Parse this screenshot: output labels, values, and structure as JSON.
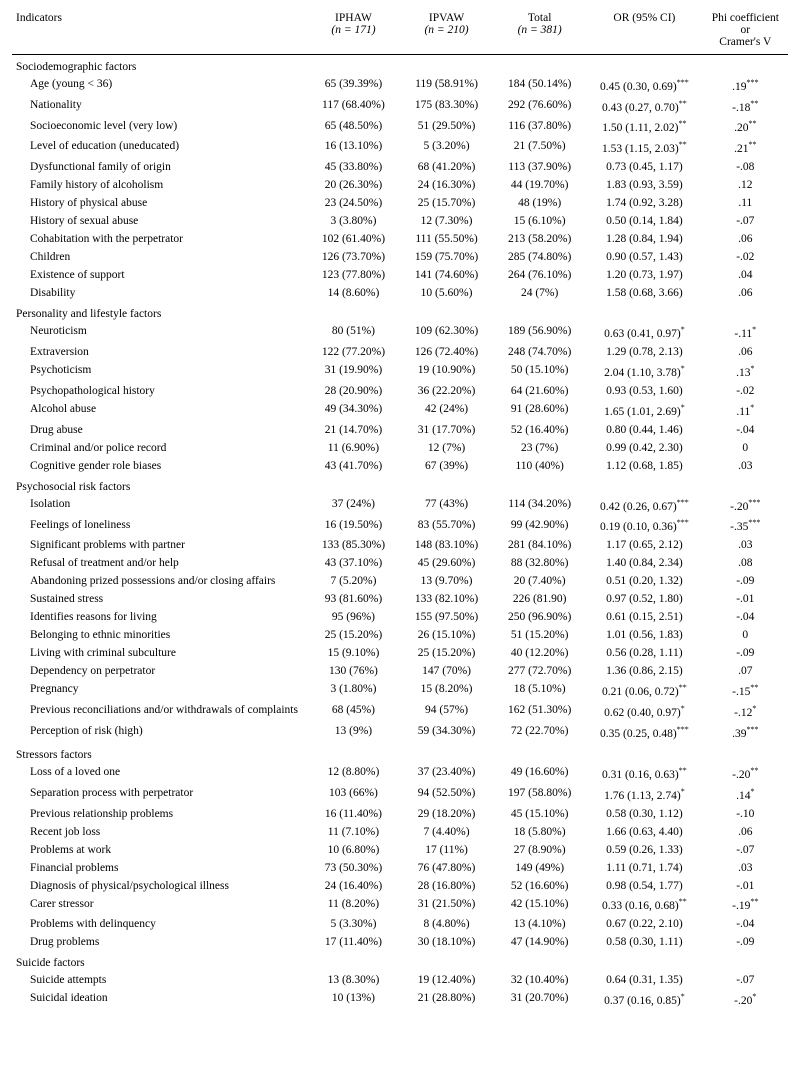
{
  "table": {
    "columns": [
      {
        "main": "Indicators",
        "sub": ""
      },
      {
        "main": "IPHAW",
        "sub": "(n = 171)"
      },
      {
        "main": "IPVAW",
        "sub": "(n = 210)"
      },
      {
        "main": "Total",
        "sub": "(n = 381)"
      },
      {
        "main": "OR (95% CI)",
        "sub": ""
      },
      {
        "main": "Phi coefficient\nor\nCramer's V",
        "sub": ""
      }
    ],
    "sections": [
      {
        "title": "Sociodemographic factors",
        "rows": [
          {
            "indicator": "Age (young < 36)",
            "v1": "65 (39.39%)",
            "v2": "119 (58.91%)",
            "v3": "184 (50.14%)",
            "or": "0.45 (0.30, 0.69)***",
            "phi": ".19***"
          },
          {
            "indicator": "Nationality",
            "v1": "117 (68.40%)",
            "v2": "175 (83.30%)",
            "v3": "292 (76.60%)",
            "or": "0.43 (0.27, 0.70)**",
            "phi": "-.18**"
          },
          {
            "indicator": "Socioeconomic level (very low)",
            "v1": "65 (48.50%)",
            "v2": "51 (29.50%)",
            "v3": "116 (37.80%)",
            "or": "1.50 (1.11, 2.02)**",
            "phi": ".20**"
          },
          {
            "indicator": "Level of education (uneducated)",
            "v1": "16 (13.10%)",
            "v2": "5 (3.20%)",
            "v3": "21 (7.50%)",
            "or": "1.53 (1.15, 2.03)**",
            "phi": ".21**"
          },
          {
            "indicator": "Dysfunctional family of origin",
            "v1": "45 (33.80%)",
            "v2": "68 (41.20%)",
            "v3": "113 (37.90%)",
            "or": "0.73 (0.45, 1.17)",
            "phi": "-.08"
          },
          {
            "indicator": "Family history of alcoholism",
            "v1": "20 (26.30%)",
            "v2": "24 (16.30%)",
            "v3": "44 (19.70%)",
            "or": "1.83 (0.93, 3.59)",
            "phi": ".12"
          },
          {
            "indicator": "History of physical abuse",
            "v1": "23 (24.50%)",
            "v2": "25 (15.70%)",
            "v3": "48 (19%)",
            "or": "1.74 (0.92, 3.28)",
            "phi": ".11"
          },
          {
            "indicator": "History of sexual abuse",
            "v1": "3 (3.80%)",
            "v2": "12 (7.30%)",
            "v3": "15 (6.10%)",
            "or": "0.50 (0.14, 1.84)",
            "phi": "-.07"
          },
          {
            "indicator": "Cohabitation with the perpetrator",
            "v1": "102 (61.40%)",
            "v2": "111 (55.50%)",
            "v3": "213 (58.20%)",
            "or": "1.28 (0.84, 1.94)",
            "phi": ".06"
          },
          {
            "indicator": "Children",
            "v1": "126 (73.70%)",
            "v2": "159 (75.70%)",
            "v3": "285 (74.80%)",
            "or": "0.90 (0.57, 1.43)",
            "phi": "-.02"
          },
          {
            "indicator": "Existence of support",
            "v1": "123 (77.80%)",
            "v2": "141 (74.60%)",
            "v3": "264 (76.10%)",
            "or": "1.20 (0.73, 1.97)",
            "phi": ".04"
          },
          {
            "indicator": "Disability",
            "v1": "14 (8.60%)",
            "v2": "10 (5.60%)",
            "v3": "24 (7%)",
            "or": "1.58 (0.68, 3.66)",
            "phi": ".06"
          }
        ]
      },
      {
        "title": "Personality and lifestyle factors",
        "rows": [
          {
            "indicator": "Neuroticism",
            "v1": "80 (51%)",
            "v2": "109 (62.30%)",
            "v3": "189 (56.90%)",
            "or": "0.63 (0.41, 0.97)*",
            "phi": "-.11*"
          },
          {
            "indicator": "Extraversion",
            "v1": "122 (77.20%)",
            "v2": "126 (72.40%)",
            "v3": "248 (74.70%)",
            "or": "1.29 (0.78, 2.13)",
            "phi": ".06"
          },
          {
            "indicator": "Psychoticism",
            "v1": "31 (19.90%)",
            "v2": "19 (10.90%)",
            "v3": "50 (15.10%)",
            "or": "2.04 (1.10, 3.78)*",
            "phi": ".13*"
          },
          {
            "indicator": "Psychopathological history",
            "v1": "28 (20.90%)",
            "v2": "36 (22.20%)",
            "v3": "64 (21.60%)",
            "or": "0.93 (0.53, 1.60)",
            "phi": "-.02"
          },
          {
            "indicator": "Alcohol abuse",
            "v1": "49 (34.30%)",
            "v2": "42 (24%)",
            "v3": "91 (28.60%)",
            "or": "1.65 (1.01, 2.69)*",
            "phi": ".11*"
          },
          {
            "indicator": "Drug abuse",
            "v1": "21 (14.70%)",
            "v2": "31 (17.70%)",
            "v3": "52 (16.40%)",
            "or": "0.80 (0.44, 1.46)",
            "phi": "-.04"
          },
          {
            "indicator": "Criminal and/or police record",
            "v1": "11 (6.90%)",
            "v2": "12 (7%)",
            "v3": "23 (7%)",
            "or": "0.99 (0.42, 2.30)",
            "phi": "0"
          },
          {
            "indicator": "Cognitive gender role biases",
            "v1": "43 (41.70%)",
            "v2": "67 (39%)",
            "v3": "110 (40%)",
            "or": "1.12 (0.68, 1.85)",
            "phi": ".03"
          }
        ]
      },
      {
        "title": "Psychosocial risk factors",
        "rows": [
          {
            "indicator": "Isolation",
            "v1": "37 (24%)",
            "v2": "77 (43%)",
            "v3": "114 (34.20%)",
            "or": "0.42 (0.26, 0.67)***",
            "phi": "-.20***"
          },
          {
            "indicator": "Feelings of loneliness",
            "v1": "16 (19.50%)",
            "v2": "83 (55.70%)",
            "v3": "99 (42.90%)",
            "or": "0.19 (0.10, 0.36)***",
            "phi": "-.35***"
          },
          {
            "indicator": "Significant problems with partner",
            "v1": "133 (85.30%)",
            "v2": "148 (83.10%)",
            "v3": "281 (84.10%)",
            "or": "1.17 (0.65, 2.12)",
            "phi": ".03"
          },
          {
            "indicator": "Refusal of treatment and/or help",
            "v1": "43 (37.10%)",
            "v2": "45 (29.60%)",
            "v3": "88 (32.80%)",
            "or": "1.40 (0.84, 2.34)",
            "phi": ".08"
          },
          {
            "indicator": "Abandoning prized possessions and/or closing affairs",
            "v1": "7 (5.20%)",
            "v2": "13 (9.70%)",
            "v3": "20 (7.40%)",
            "or": "0.51 (0.20, 1.32)",
            "phi": "-.09"
          },
          {
            "indicator": "Sustained stress",
            "v1": "93 (81.60%)",
            "v2": "133 (82.10%)",
            "v3": "226 (81.90)",
            "or": "0.97 (0.52, 1.80)",
            "phi": "-.01"
          },
          {
            "indicator": "Identifies reasons for living",
            "v1": "95 (96%)",
            "v2": "155 (97.50%)",
            "v3": "250 (96.90%)",
            "or": "0.61 (0.15, 2.51)",
            "phi": "-.04"
          },
          {
            "indicator": "Belonging to ethnic minorities",
            "v1": "25 (15.20%)",
            "v2": "26 (15.10%)",
            "v3": "51 (15.20%)",
            "or": "1.01 (0.56, 1.83)",
            "phi": "0"
          },
          {
            "indicator": "Living with criminal subculture",
            "v1": "15 (9.10%)",
            "v2": "25 (15.20%)",
            "v3": "40 (12.20%)",
            "or": "0.56 (0.28, 1.11)",
            "phi": "-.09"
          },
          {
            "indicator": "Dependency on perpetrator",
            "v1": "130 (76%)",
            "v2": "147 (70%)",
            "v3": "277 (72.70%)",
            "or": "1.36 (0.86, 2.15)",
            "phi": ".07"
          },
          {
            "indicator": "Pregnancy",
            "v1": "3 (1.80%)",
            "v2": "15 (8.20%)",
            "v3": "18 (5.10%)",
            "or": "0.21 (0.06, 0.72)**",
            "phi": "-.15**"
          },
          {
            "indicator": "Previous reconciliations and/or withdrawals of complaints",
            "v1": "68 (45%)",
            "v2": "94 (57%)",
            "v3": "162 (51.30%)",
            "or": "0.62 (0.40, 0.97)*",
            "phi": "-.12*"
          },
          {
            "indicator": "Perception of risk (high)",
            "v1": "13 (9%)",
            "v2": "59 (34.30%)",
            "v3": "72 (22.70%)",
            "or": "0.35 (0.25, 0.48)***",
            "phi": ".39***"
          }
        ]
      },
      {
        "title": "Stressors factors",
        "rows": [
          {
            "indicator": "Loss of a loved one",
            "v1": "12 (8.80%)",
            "v2": "37 (23.40%)",
            "v3": "49 (16.60%)",
            "or": "0.31 (0.16, 0.63)**",
            "phi": "-.20**"
          },
          {
            "indicator": "Separation process with perpetrator",
            "v1": "103 (66%)",
            "v2": "94 (52.50%)",
            "v3": "197 (58.80%)",
            "or": "1.76 (1.13, 2.74)*",
            "phi": ".14*"
          },
          {
            "indicator": "Previous relationship problems",
            "v1": "16 (11.40%)",
            "v2": "29 (18.20%)",
            "v3": "45 (15.10%)",
            "or": "0.58 (0.30, 1.12)",
            "phi": "-.10"
          },
          {
            "indicator": "Recent job loss",
            "v1": "11 (7.10%)",
            "v2": "7 (4.40%)",
            "v3": "18 (5.80%)",
            "or": "1.66 (0.63, 4.40)",
            "phi": ".06"
          },
          {
            "indicator": "Problems at work",
            "v1": "10 (6.80%)",
            "v2": "17 (11%)",
            "v3": "27 (8.90%)",
            "or": "0.59 (0.26, 1.33)",
            "phi": "-.07"
          },
          {
            "indicator": "Financial problems",
            "v1": "73 (50.30%)",
            "v2": "76 (47.80%)",
            "v3": "149 (49%)",
            "or": "1.11 (0.71, 1.74)",
            "phi": ".03"
          },
          {
            "indicator": "Diagnosis of physical/psychological illness",
            "v1": "24 (16.40%)",
            "v2": "28 (16.80%)",
            "v3": "52 (16.60%)",
            "or": "0.98 (0.54, 1.77)",
            "phi": "-.01"
          },
          {
            "indicator": "Carer stressor",
            "v1": "11 (8.20%)",
            "v2": "31 (21.50%)",
            "v3": "42 (15.10%)",
            "or": "0.33 (0.16, 0.68)**",
            "phi": "-.19**"
          },
          {
            "indicator": "Problems with delinquency",
            "v1": "5 (3.30%)",
            "v2": "8 (4.80%)",
            "v3": "13 (4.10%)",
            "or": "0.67 (0.22, 2.10)",
            "phi": "-.04"
          },
          {
            "indicator": "Drug problems",
            "v1": "17 (11.40%)",
            "v2": "30 (18.10%)",
            "v3": "47 (14.90%)",
            "or": "0.58 (0.30, 1.11)",
            "phi": "-.09"
          }
        ]
      },
      {
        "title": "Suicide factors",
        "rows": [
          {
            "indicator": "Suicide attempts",
            "v1": "13 (8.30%)",
            "v2": "19 (12.40%)",
            "v3": "32 (10.40%)",
            "or": "0.64 (0.31, 1.35)",
            "phi": "-.07"
          },
          {
            "indicator": "Suicidal ideation",
            "v1": "10 (13%)",
            "v2": "21 (28.80%)",
            "v3": "31 (20.70%)",
            "or": "0.37 (0.16, 0.85)*",
            "phi": "-.20*"
          }
        ]
      }
    ]
  }
}
